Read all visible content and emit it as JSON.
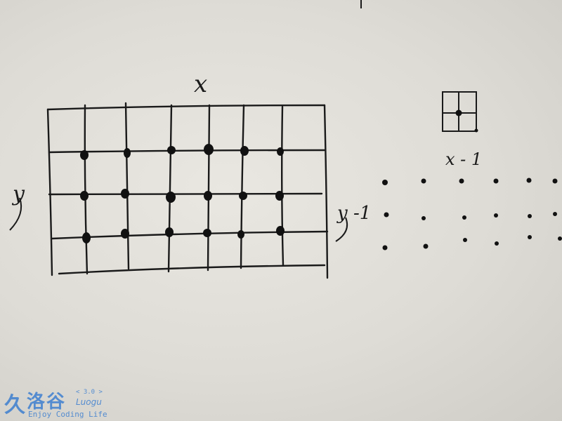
{
  "labels": {
    "grid_x": "x",
    "grid_y": "y",
    "right_x": "x - 1",
    "right_y": "y -1"
  },
  "watermark": {
    "mark": "久",
    "name": "洛谷",
    "version": "< 3.0 >",
    "sub": "Luogu",
    "tagline": "Enjoy Coding Life"
  },
  "colors": {
    "ink": "#1a1a1a",
    "watermark": "#3d7fd0"
  }
}
